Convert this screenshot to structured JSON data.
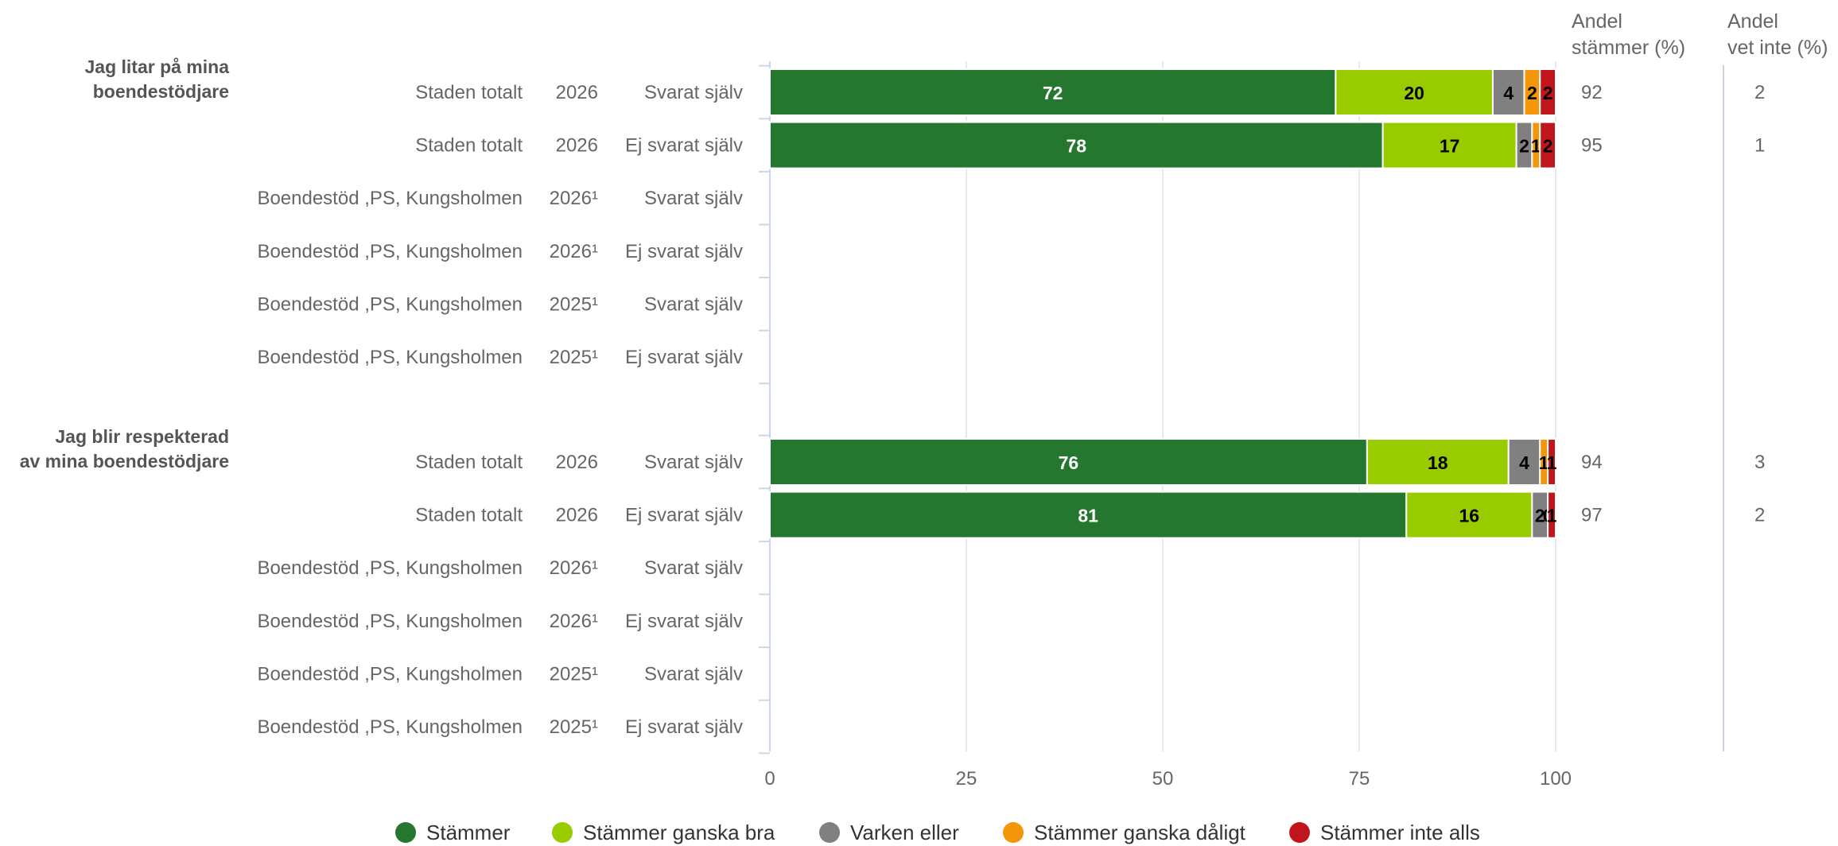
{
  "chart_data": {
    "type": "bar",
    "orientation": "horizontal",
    "stacked": true,
    "xlim": [
      0,
      100
    ],
    "x_ticks": [
      "0",
      "25",
      "50",
      "75",
      "100"
    ],
    "grid": true,
    "legend_position": "bottom",
    "column_headers": {
      "share_agree": [
        "Andel",
        "stämmer (%)"
      ],
      "share_dont_know": [
        "Andel",
        "vet inte (%)"
      ]
    },
    "series": [
      {
        "name": "Stämmer",
        "color": "#25762f"
      },
      {
        "name": "Stämmer ganska bra",
        "color": "#99cc00"
      },
      {
        "name": "Varken eller",
        "color": "#808080"
      },
      {
        "name": "Stämmer ganska dåligt",
        "color": "#f5960a"
      },
      {
        "name": "Stämmer inte alls",
        "color": "#c0151b"
      }
    ],
    "groups": [
      {
        "title": [
          "Jag litar på mina",
          "boendestödjare"
        ],
        "rows": [
          {
            "unit": "Staden totalt",
            "year": "2026",
            "type": "Svarat själv",
            "values": [
              72,
              20,
              4,
              2,
              2
            ],
            "share_agree": "92",
            "share_dont_know": "2"
          },
          {
            "unit": "Staden totalt",
            "year": "2026",
            "type": "Ej svarat själv",
            "values": [
              78,
              17,
              2,
              1,
              2
            ],
            "share_agree": "95",
            "share_dont_know": "1"
          },
          {
            "unit": "Boendestöd ,PS, Kungsholmen",
            "year": "2026¹",
            "type": "Svarat själv",
            "values": null,
            "share_agree": "",
            "share_dont_know": ""
          },
          {
            "unit": "Boendestöd ,PS, Kungsholmen",
            "year": "2026¹",
            "type": "Ej svarat själv",
            "values": null,
            "share_agree": "",
            "share_dont_know": ""
          },
          {
            "unit": "Boendestöd ,PS, Kungsholmen",
            "year": "2025¹",
            "type": "Svarat själv",
            "values": null,
            "share_agree": "",
            "share_dont_know": ""
          },
          {
            "unit": "Boendestöd ,PS, Kungsholmen",
            "year": "2025¹",
            "type": "Ej svarat själv",
            "values": null,
            "share_agree": "",
            "share_dont_know": ""
          }
        ]
      },
      {
        "title": [
          "Jag blir respekterad",
          "av mina boendestödjare"
        ],
        "rows": [
          {
            "unit": "Staden totalt",
            "year": "2026",
            "type": "Svarat själv",
            "values": [
              76,
              18,
              4,
              1,
              1
            ],
            "share_agree": "94",
            "share_dont_know": "3"
          },
          {
            "unit": "Staden totalt",
            "year": "2026",
            "type": "Ej svarat själv",
            "values": [
              81,
              16,
              2,
              0,
              1
            ],
            "share_agree": "97",
            "share_dont_know": "2"
          },
          {
            "unit": "Boendestöd ,PS, Kungsholmen",
            "year": "2026¹",
            "type": "Svarat själv",
            "values": null,
            "share_agree": "",
            "share_dont_know": ""
          },
          {
            "unit": "Boendestöd ,PS, Kungsholmen",
            "year": "2026¹",
            "type": "Ej svarat själv",
            "values": null,
            "share_agree": "",
            "share_dont_know": ""
          },
          {
            "unit": "Boendestöd ,PS, Kungsholmen",
            "year": "2025¹",
            "type": "Svarat själv",
            "values": null,
            "share_agree": "",
            "share_dont_know": ""
          },
          {
            "unit": "Boendestöd ,PS, Kungsholmen",
            "year": "2025¹",
            "type": "Ej svarat själv",
            "values": null,
            "share_agree": "",
            "share_dont_know": ""
          }
        ]
      }
    ]
  }
}
